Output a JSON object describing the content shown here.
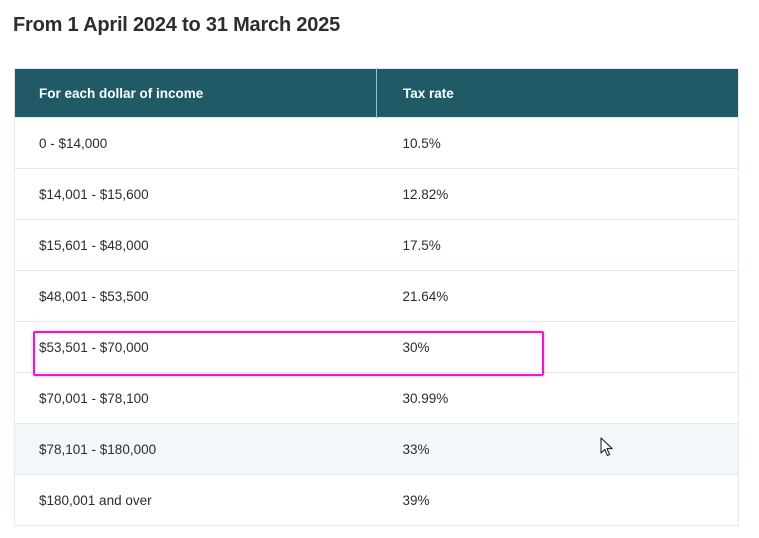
{
  "heading": "From 1 April 2024 to 31 March 2025",
  "table": {
    "headers": {
      "income": "For each dollar of income",
      "rate": "Tax rate"
    },
    "rows": [
      {
        "income": "0 - $14,000",
        "rate": "10.5%"
      },
      {
        "income": "$14,001 - $15,600",
        "rate": "12.82%"
      },
      {
        "income": "$15,601 - $48,000",
        "rate": "17.5%"
      },
      {
        "income": "$48,001 - $53,500",
        "rate": "21.64%"
      },
      {
        "income": "$53,501 - $70,000",
        "rate": "30%"
      },
      {
        "income": "$70,001 - $78,100",
        "rate": "30.99%"
      },
      {
        "income": "$78,101 - $180,000",
        "rate": "33%"
      },
      {
        "income": "$180,001 and over",
        "rate": "39%"
      }
    ]
  },
  "colors": {
    "header_background": "#1f5a66",
    "highlight_border": "#e21ad6",
    "hover_row_background": "#f2f7fa"
  },
  "icons": {
    "cursor": "mouse-pointer-icon"
  }
}
